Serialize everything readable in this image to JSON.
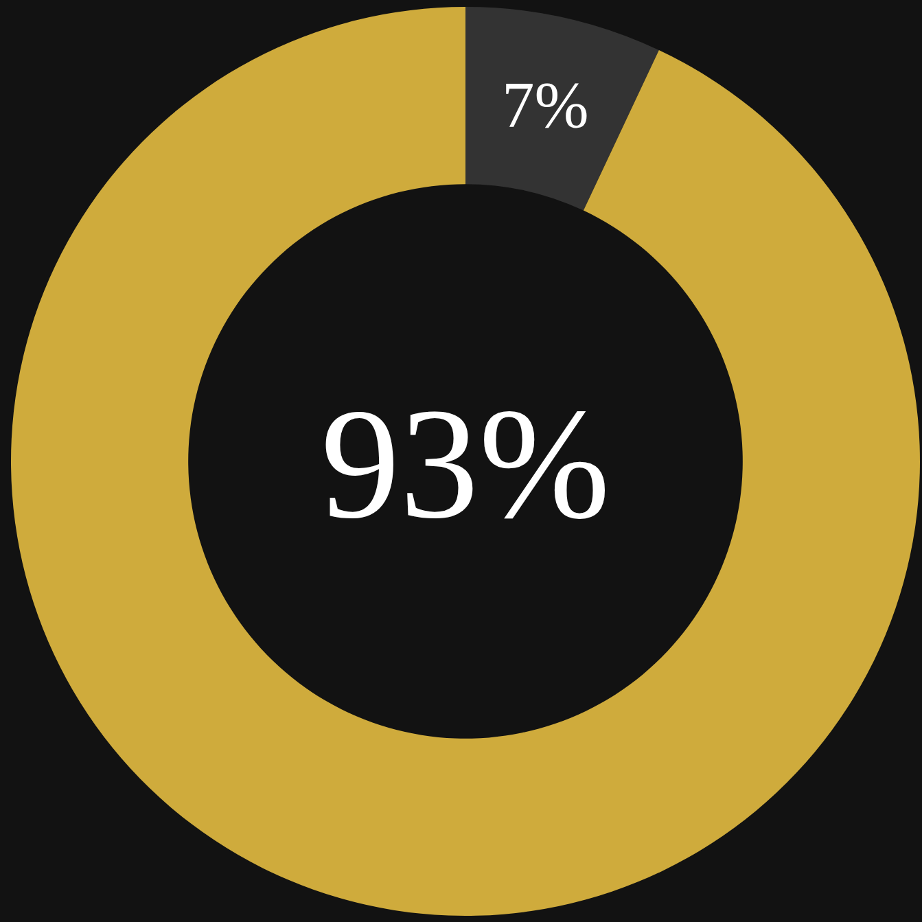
{
  "chart_data": {
    "type": "donut",
    "categories": [
      null,
      null
    ],
    "values": [
      7,
      93
    ],
    "colors": [
      "#333333",
      "#cfab3c"
    ],
    "value_labels": [
      "7%",
      "93%"
    ]
  }
}
